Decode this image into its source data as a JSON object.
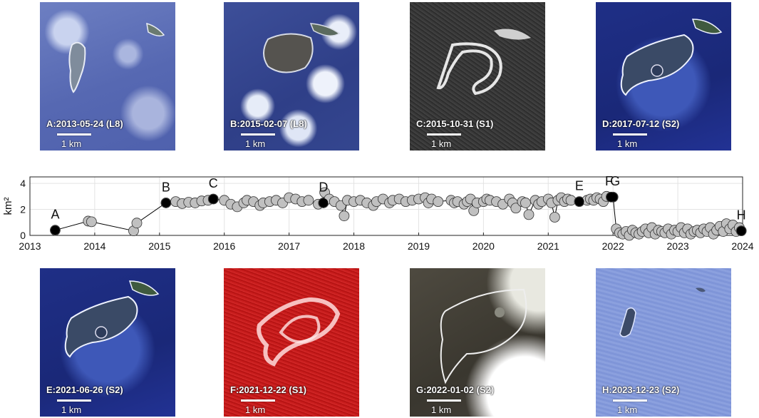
{
  "panels_top": [
    {
      "caption": "A:2013-05-24 (L8)",
      "scale": "1 km"
    },
    {
      "caption": "B:2015-02-07 (L8)",
      "scale": "1 km"
    },
    {
      "caption": "C:2015-10-31 (S1)",
      "scale": "1 km"
    },
    {
      "caption": "D:2017-07-12 (S2)",
      "scale": "1 km"
    }
  ],
  "panels_bottom": [
    {
      "caption": "E:2021-06-26 (S2)",
      "scale": "1 km"
    },
    {
      "caption": "F:2021-12-22 (S1)",
      "scale": "1 km"
    },
    {
      "caption": "G:2022-01-02 (S2)",
      "scale": "1 km"
    },
    {
      "caption": "H:2023-12-23 (S2)",
      "scale": "1 km"
    }
  ],
  "chart_data": {
    "type": "scatter",
    "ylabel": "km²",
    "xlabel": "",
    "title": "",
    "xlim": [
      2013,
      2024
    ],
    "ylim": [
      0,
      4.5
    ],
    "xticks": [
      "2013",
      "2014",
      "2015",
      "2016",
      "2017",
      "2018",
      "2019",
      "2020",
      "2021",
      "2022",
      "2023",
      "2024"
    ],
    "yticks": [
      "0",
      "2",
      "4"
    ],
    "grid": true,
    "colors": {
      "highlight": "#000000",
      "points": "#c0c0c0",
      "point_edge": "#333333",
      "line": "#000000"
    },
    "highlighted": [
      {
        "label": "A",
        "x": 2013.39,
        "y": 0.4
      },
      {
        "label": "B",
        "x": 2015.1,
        "y": 2.5
      },
      {
        "label": "C",
        "x": 2015.83,
        "y": 2.8
      },
      {
        "label": "D",
        "x": 2017.53,
        "y": 2.5
      },
      {
        "label": "E",
        "x": 2021.48,
        "y": 2.6
      },
      {
        "label": "F",
        "x": 2021.97,
        "y": 2.95
      },
      {
        "label": "G",
        "x": 2022.0,
        "y": 2.95
      },
      {
        "label": "H",
        "x": 2023.98,
        "y": 0.35
      }
    ],
    "series": [
      {
        "x": [
          2013.39,
          2013.9,
          2013.95,
          2014.6,
          2014.65,
          2015.1,
          2015.25,
          2015.35,
          2015.45,
          2015.55,
          2015.65,
          2015.75,
          2015.83,
          2016.0,
          2016.1,
          2016.2,
          2016.3,
          2016.35,
          2016.45,
          2016.55,
          2016.6,
          2016.7,
          2016.8,
          2016.9,
          2017.0,
          2017.1,
          2017.2,
          2017.3,
          2017.45,
          2017.53,
          2017.55,
          2017.62,
          2017.7,
          2017.8,
          2017.85,
          2017.9,
          2018.0,
          2018.1,
          2018.2,
          2018.3,
          2018.35,
          2018.45,
          2018.55,
          2018.6,
          2018.7,
          2018.8,
          2018.9,
          2019.0,
          2019.1,
          2019.15,
          2019.2,
          2019.3,
          2019.5,
          2019.55,
          2019.6,
          2019.7,
          2019.75,
          2019.8,
          2019.85,
          2019.9,
          2020.0,
          2020.05,
          2020.1,
          2020.2,
          2020.3,
          2020.4,
          2020.45,
          2020.5,
          2020.6,
          2020.65,
          2020.7,
          2020.8,
          2020.85,
          2020.9,
          2021.0,
          2021.05,
          2021.1,
          2021.15,
          2021.2,
          2021.25,
          2021.3,
          2021.35,
          2021.48,
          2021.6,
          2021.65,
          2021.7,
          2021.75,
          2021.8,
          2021.85,
          2021.9,
          2021.97,
          2022.0
        ],
        "y": [
          0.4,
          1.1,
          1.05,
          0.35,
          0.95,
          2.5,
          2.6,
          2.45,
          2.55,
          2.5,
          2.65,
          2.7,
          2.8,
          2.7,
          2.4,
          2.2,
          2.5,
          2.7,
          2.6,
          2.3,
          2.5,
          2.6,
          2.7,
          2.5,
          2.9,
          2.8,
          2.6,
          2.7,
          2.4,
          2.5,
          3.3,
          2.8,
          2.6,
          2.3,
          1.5,
          2.7,
          2.6,
          2.7,
          2.5,
          2.3,
          2.6,
          2.8,
          2.5,
          2.7,
          2.8,
          2.6,
          2.7,
          2.8,
          2.9,
          2.5,
          2.8,
          2.6,
          2.7,
          2.5,
          2.6,
          2.4,
          2.6,
          2.8,
          1.9,
          2.5,
          2.6,
          2.8,
          2.7,
          2.6,
          2.4,
          2.8,
          2.5,
          2.1,
          2.6,
          2.5,
          1.6,
          2.7,
          2.4,
          2.6,
          2.8,
          2.5,
          1.4,
          2.7,
          2.9,
          2.6,
          2.8,
          2.7,
          2.6,
          2.7,
          2.8,
          2.7,
          2.9,
          2.8,
          2.6,
          3.0,
          2.95,
          2.95
        ]
      },
      {
        "x": [
          2022.05,
          2022.1,
          2022.15,
          2022.2,
          2022.25,
          2022.3,
          2022.35,
          2022.4,
          2022.45,
          2022.5,
          2022.55,
          2022.6,
          2022.65,
          2022.7,
          2022.75,
          2022.8,
          2022.85,
          2022.9,
          2022.95,
          2023.0,
          2023.05,
          2023.1,
          2023.15,
          2023.2,
          2023.25,
          2023.3,
          2023.35,
          2023.4,
          2023.45,
          2023.5,
          2023.55,
          2023.6,
          2023.65,
          2023.7,
          2023.75,
          2023.8,
          2023.85,
          2023.9,
          2023.95,
          2023.98
        ],
        "y": [
          0.5,
          0.2,
          0.1,
          0.3,
          0.0,
          0.4,
          0.2,
          0.1,
          0.3,
          0.5,
          0.2,
          0.6,
          0.1,
          0.4,
          0.3,
          0.2,
          0.5,
          0.1,
          0.4,
          0.3,
          0.6,
          0.2,
          0.5,
          0.1,
          0.3,
          0.4,
          0.2,
          0.5,
          0.3,
          0.6,
          0.1,
          0.4,
          0.7,
          0.3,
          0.9,
          0.5,
          0.8,
          0.3,
          0.6,
          0.35
        ]
      }
    ]
  }
}
